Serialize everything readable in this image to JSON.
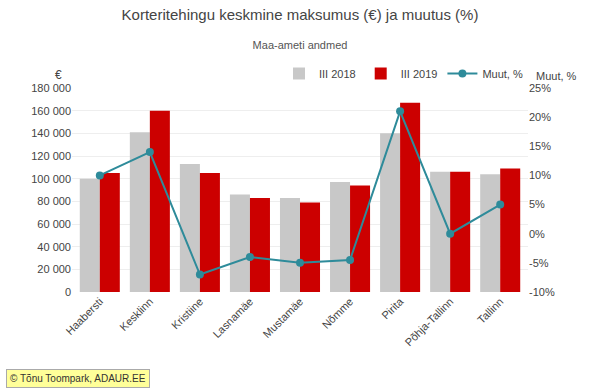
{
  "chart_data": {
    "type": "bar",
    "title": "Korteritehingu keskmine maksumus (€) ja muutus (%)",
    "subtitle": "Maa-ameti andmed",
    "ylabel": "€",
    "y2label": "Muut, %",
    "categories": [
      "Haabersti",
      "Kesklinn",
      "Kristiine",
      "Lasnamäe",
      "Mustamäe",
      "Nõmme",
      "Pirita",
      "Põhja-Tallinn",
      "Tallinn"
    ],
    "series": [
      {
        "name": "III 2018",
        "type": "bar",
        "color": "#c8c8c8",
        "values": [
          100000,
          141000,
          113000,
          86000,
          83000,
          97000,
          140000,
          106000,
          104000
        ]
      },
      {
        "name": "III 2019",
        "type": "bar",
        "color": "#cc0000",
        "values": [
          105000,
          160000,
          105000,
          83000,
          79000,
          94000,
          167000,
          106000,
          109000
        ]
      },
      {
        "name": "Muut, %",
        "type": "line",
        "axis": "y2",
        "color": "#2e8b9a",
        "marker": "circle",
        "values": [
          10,
          14,
          -7,
          -4,
          -5,
          -4.5,
          21,
          0,
          5
        ]
      }
    ],
    "ylim": [
      0,
      180000
    ],
    "yticks": [
      0,
      {
        "value": 20000,
        "label": "20 000"
      },
      {
        "value": 40000,
        "label": "40 000"
      },
      {
        "value": 60000,
        "label": "60 000"
      },
      {
        "value": 80000,
        "label": "80 000"
      },
      {
        "value": 100000,
        "label": "100 000"
      },
      {
        "value": 120000,
        "label": "120 000"
      },
      {
        "value": 140000,
        "label": "140 000"
      },
      {
        "value": 160000,
        "label": "160 000"
      },
      {
        "value": 180000,
        "label": "180 000"
      }
    ],
    "y2lim": [
      -10,
      25
    ],
    "y2ticks": [
      {
        "value": -10,
        "label": "-10%"
      },
      {
        "value": -5,
        "label": "-5%"
      },
      {
        "value": 0,
        "label": "0%"
      },
      {
        "value": 5,
        "label": "5%"
      },
      {
        "value": 10,
        "label": "10%"
      },
      {
        "value": 15,
        "label": "15%"
      },
      {
        "value": 20,
        "label": "20%"
      },
      {
        "value": 25,
        "label": "25%"
      }
    ],
    "grid": true,
    "legend": "upper right",
    "annotations": [
      "© Tõnu Toompark, ADAUR.EE"
    ]
  }
}
